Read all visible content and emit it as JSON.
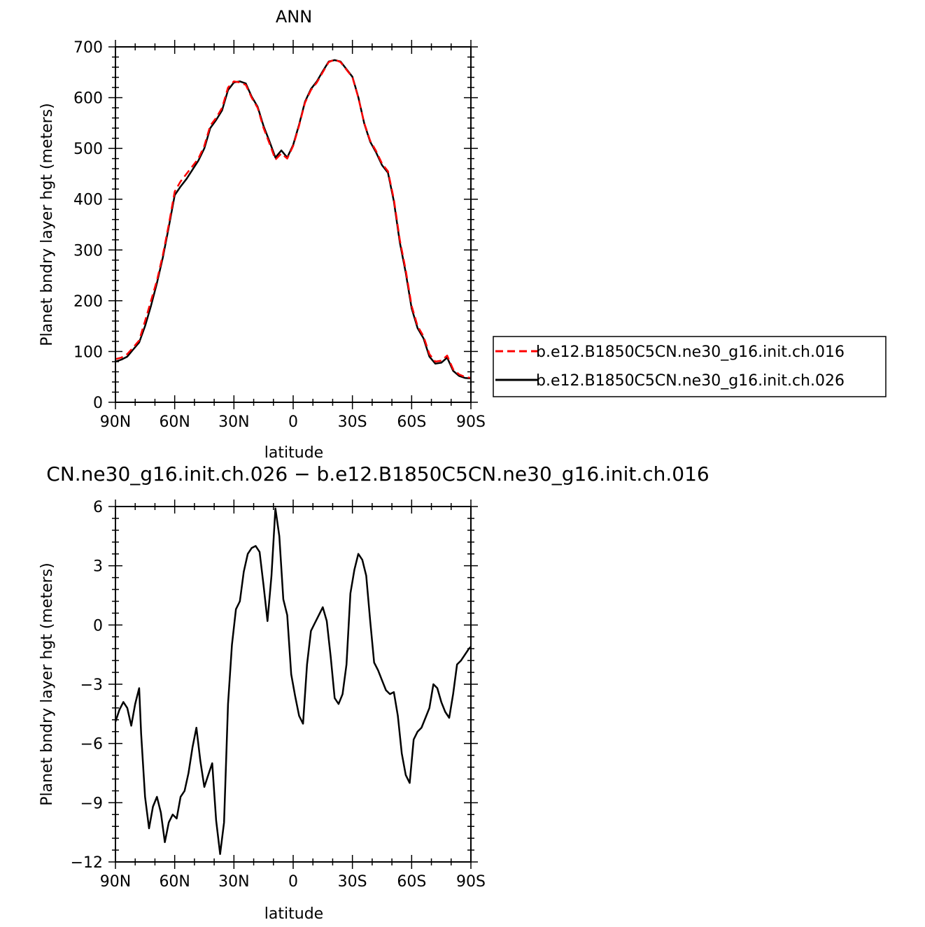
{
  "chart_data": [
    {
      "type": "line",
      "title": "ANN",
      "xlabel": "latitude",
      "ylabel": "Planet bndry layer hgt (meters)",
      "xlim": [
        90,
        -90
      ],
      "ylim": [
        0,
        700
      ],
      "x_ticks": [
        90,
        60,
        30,
        0,
        -30,
        -60,
        -90
      ],
      "x_tick_labels": [
        "90N",
        "60N",
        "30N",
        "0",
        "30S",
        "60S",
        "90S"
      ],
      "y_ticks": [
        0,
        100,
        200,
        300,
        400,
        500,
        600,
        700
      ],
      "y_tick_labels": [
        "0",
        "100",
        "200",
        "300",
        "400",
        "500",
        "600",
        "700"
      ],
      "legend_position": "right",
      "x": [
        90,
        87,
        84,
        81,
        78,
        75,
        72,
        69,
        66,
        63,
        60,
        57,
        54,
        51,
        48,
        45,
        42,
        39,
        36,
        33,
        30,
        27,
        24,
        21,
        18,
        15,
        12,
        9,
        6,
        3,
        0,
        -3,
        -6,
        -9,
        -12,
        -15,
        -18,
        -21,
        -24,
        -27,
        -30,
        -33,
        -36,
        -39,
        -42,
        -45,
        -48,
        -51,
        -54,
        -57,
        -60,
        -63,
        -66,
        -69,
        -72,
        -75,
        -78,
        -81,
        -84,
        -87,
        -90
      ],
      "series": [
        {
          "name": "b.e12.B1850C5CN.ne30_g16.init.ch.016",
          "color": "#ff0000",
          "dash": "dashed",
          "values": [
            85,
            88,
            95,
            108,
            122,
            160,
            200,
            240,
            290,
            350,
            415,
            435,
            450,
            465,
            480,
            505,
            545,
            560,
            580,
            620,
            632,
            630,
            625,
            600,
            580,
            540,
            510,
            478,
            490,
            480,
            505,
            545,
            590,
            615,
            630,
            650,
            670,
            675,
            670,
            655,
            640,
            600,
            550,
            515,
            495,
            470,
            455,
            400,
            320,
            260,
            190,
            150,
            130,
            95,
            80,
            82,
            92,
            65,
            55,
            50,
            48
          ]
        },
        {
          "name": "b.e12.B1850C5CN.ne30_g16.init.ch.026",
          "color": "#000000",
          "dash": "solid",
          "values": [
            80,
            84,
            90,
            104,
            118,
            150,
            190,
            235,
            285,
            345,
            408,
            425,
            440,
            458,
            476,
            500,
            540,
            556,
            575,
            615,
            630,
            632,
            628,
            602,
            582,
            544,
            514,
            482,
            496,
            482,
            507,
            547,
            592,
            617,
            632,
            652,
            671,
            674,
            671,
            656,
            641,
            601,
            549,
            513,
            492,
            467,
            452,
            396,
            315,
            255,
            185,
            146,
            126,
            90,
            76,
            78,
            88,
            62,
            52,
            48,
            47
          ]
        }
      ]
    },
    {
      "type": "line",
      "title": "CN.ne30_g16.init.ch.026 − b.e12.B1850C5CN.ne30_g16.init.ch.016",
      "xlabel": "latitude",
      "ylabel": "Planet bndry layer hgt (meters)",
      "xlim": [
        90,
        -90
      ],
      "ylim": [
        -12,
        6
      ],
      "x_ticks": [
        90,
        60,
        30,
        0,
        -30,
        -60,
        -90
      ],
      "x_tick_labels": [
        "90N",
        "60N",
        "30N",
        "0",
        "30S",
        "60S",
        "90S"
      ],
      "y_ticks": [
        -12,
        -9,
        -6,
        -3,
        0,
        3,
        6
      ],
      "y_tick_labels": [
        "−12",
        "−9",
        "−6",
        "−3",
        "0",
        "3",
        "6"
      ],
      "x": [
        90,
        88,
        86,
        84,
        82,
        80,
        78,
        77,
        75,
        73,
        71,
        69,
        67,
        65,
        63,
        61,
        59,
        57,
        55,
        53,
        51,
        49,
        47,
        45,
        43,
        41,
        39,
        37,
        35,
        33,
        31,
        29,
        27,
        25,
        23,
        21,
        19,
        17,
        15,
        13,
        11,
        9,
        7,
        5,
        3,
        1,
        -1,
        -3,
        -5,
        -7,
        -9,
        -11,
        -13,
        -15,
        -17,
        -19,
        -21,
        -23,
        -25,
        -27,
        -29,
        -31,
        -33,
        -35,
        -37,
        -39,
        -41,
        -43,
        -45,
        -47,
        -49,
        -51,
        -53,
        -55,
        -57,
        -59,
        -61,
        -63,
        -65,
        -67,
        -69,
        -71,
        -73,
        -75,
        -77,
        -79,
        -81,
        -83,
        -85,
        -87,
        -89,
        -90
      ],
      "series": [
        {
          "name": "",
          "color": "#000000",
          "dash": "solid",
          "values": [
            -4.9,
            -4.3,
            -3.9,
            -4.2,
            -5.1,
            -4.0,
            -3.2,
            -5.5,
            -8.7,
            -10.3,
            -9.2,
            -8.7,
            -9.5,
            -11.0,
            -10.0,
            -9.6,
            -9.8,
            -8.7,
            -8.4,
            -7.5,
            -6.2,
            -5.2,
            -6.9,
            -8.2,
            -7.6,
            -7.0,
            -9.9,
            -11.6,
            -10.0,
            -4.0,
            -1.0,
            0.8,
            1.2,
            2.7,
            3.6,
            3.9,
            4.0,
            3.7,
            2.0,
            0.2,
            2.5,
            5.9,
            4.5,
            1.3,
            0.5,
            -2.5,
            -3.6,
            -4.6,
            -5.0,
            -2.0,
            -0.3,
            0.1,
            0.5,
            0.9,
            0.2,
            -1.6,
            -3.7,
            -4.0,
            -3.5,
            -2.0,
            1.6,
            2.8,
            3.6,
            3.3,
            2.5,
            0.2,
            -1.9,
            -2.3,
            -2.8,
            -3.3,
            -3.5,
            -3.4,
            -4.6,
            -6.5,
            -7.6,
            -8.0,
            -5.8,
            -5.4,
            -5.2,
            -4.7,
            -4.2,
            -3.0,
            -3.2,
            -3.9,
            -4.4,
            -4.7,
            -3.5,
            -2.0,
            -1.8,
            -1.5,
            -1.2,
            -1.1
          ]
        }
      ]
    }
  ]
}
